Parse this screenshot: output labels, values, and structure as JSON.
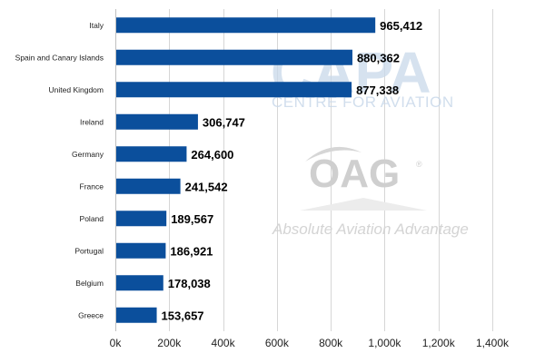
{
  "watermarks": {
    "capa_logo": "CAPA",
    "capa_subtitle": "CENTRE FOR AVIATION",
    "oag_logo": "OAG",
    "oag_registered": "®",
    "oag_tagline": "Absolute Aviation Advantage"
  },
  "chart_data": {
    "type": "bar",
    "orientation": "horizontal",
    "categories": [
      "Italy",
      "Spain and Canary Islands",
      "United Kingdom",
      "Ireland",
      "Germany",
      "France",
      "Poland",
      "Portugal",
      "Belgium",
      "Greece"
    ],
    "values": [
      965412,
      880362,
      877338,
      306747,
      264600,
      241542,
      189567,
      186921,
      178038,
      153657
    ],
    "value_labels": [
      "965,412",
      "880,362",
      "877,338",
      "306,747",
      "264,600",
      "241,542",
      "189,567",
      "186,921",
      "178,038",
      "153,657"
    ],
    "xlim": [
      0,
      1400000
    ],
    "x_ticks": [
      0,
      200000,
      400000,
      600000,
      800000,
      1000000,
      1200000,
      1400000
    ],
    "x_tick_labels": [
      "0k",
      "200k",
      "400k",
      "600k",
      "800k",
      "1,000k",
      "1,200k",
      "1,400k"
    ],
    "bar_color": "#0b4f9c",
    "grid": true,
    "legend": "none"
  }
}
